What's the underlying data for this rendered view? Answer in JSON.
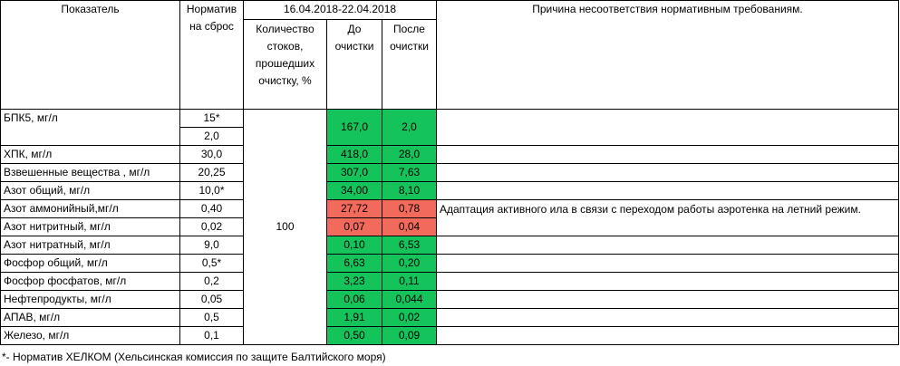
{
  "headers": {
    "indicator": "Показатель",
    "norm": "Норматив на сброс",
    "period": "16.04.2018-22.04.2018",
    "quantity": "Количество стоков, прошедших очистку, %",
    "before": "До очистки",
    "after": "После очистки",
    "reason": "Причина несоответствия нормативным требованиям."
  },
  "quantity_value": "100",
  "reason_text": "Адаптация активного ила  в связи с переходом работы аэротенка на летний режим.",
  "rows": [
    {
      "name": "БПК5, мг/л",
      "norm": "15*",
      "norm2": "2,0",
      "before": "167,0",
      "after": "2,0",
      "status": "green"
    },
    {
      "name": "ХПК, мг/л",
      "norm": "30,0",
      "before": "418,0",
      "after": "28,0",
      "status": "green"
    },
    {
      "name": "Взвешенные вещества , мг/л",
      "norm": "20,25",
      "before": "307,0",
      "after": "7,63",
      "status": "green"
    },
    {
      "name": "Азот общий, мг/л",
      "norm": "10,0*",
      "before": "34,00",
      "after": "8,10",
      "status": "green"
    },
    {
      "name": "Азот аммонийный,мг/л",
      "norm": "0,40",
      "before": "27,72",
      "after": "0,78",
      "status": "red"
    },
    {
      "name": "Азот нитритный, мг/л",
      "norm": "0,02",
      "before": "0,07",
      "after": "0,04",
      "status": "red"
    },
    {
      "name": "Азот нитратный, мг/л",
      "norm": "9,0",
      "before": "0,10",
      "after": "6,53",
      "status": "green"
    },
    {
      "name": "Фосфор общий, мг/л",
      "norm": "0,5*",
      "before": "6,63",
      "after": "0,20",
      "status": "green"
    },
    {
      "name": "Фосфор фосфатов, мг/л",
      "norm": "0,2",
      "before": "3,23",
      "after": "0,11",
      "status": "green"
    },
    {
      "name": "Нефтепродукты, мг/л",
      "norm": "0,05",
      "before": "0,06",
      "after": "0,044",
      "status": "green"
    },
    {
      "name": "АПАВ, мг/л",
      "norm": "0,5",
      "before": "1,91",
      "after": "0,02",
      "status": "green"
    },
    {
      "name": "Железо, мг/л",
      "norm": "0,1",
      "before": "0,50",
      "after": "0,09",
      "status": "green"
    }
  ],
  "footnote": "*- Норматив ХЕЛКОМ (Хельсинская комиссия по защите Балтийского моря)",
  "colors": {
    "compliant": "#14c35a",
    "noncompliant": "#f26a5c"
  }
}
